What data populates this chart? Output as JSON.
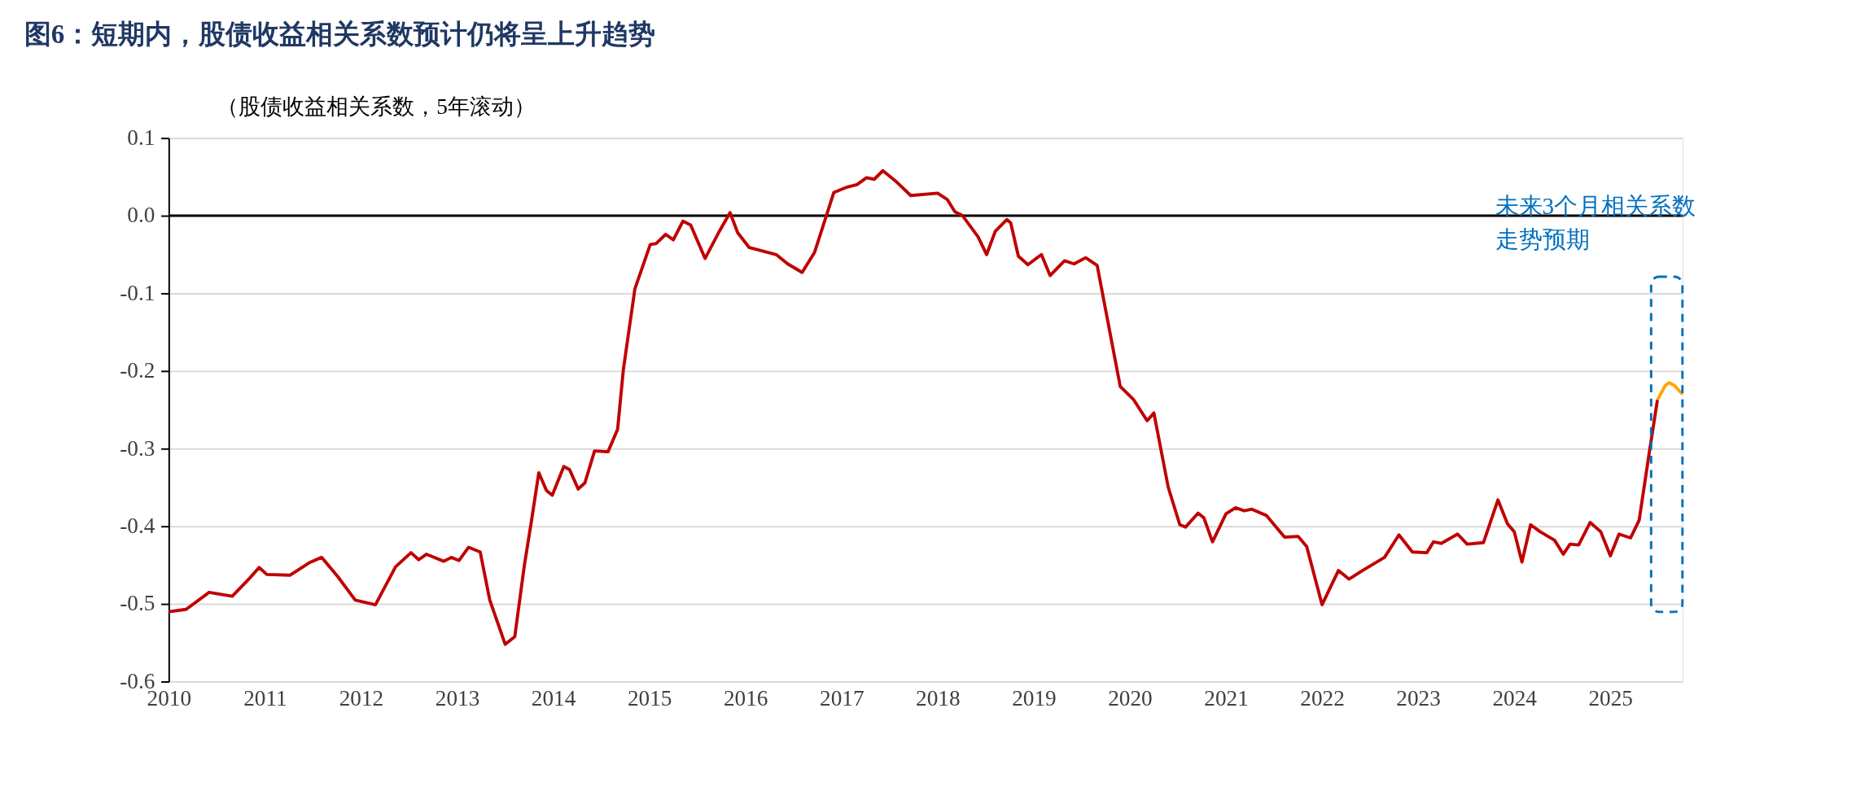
{
  "chart_data": {
    "type": "line",
    "title": "图6：短期内，股债收益相关系数预计仍将呈上升趋势",
    "ylabel": "（股债收益相关系数，5年滚动）",
    "xlim": [
      2010,
      2025.75
    ],
    "xticks": [
      2010,
      2011,
      2012,
      2013,
      2014,
      2015,
      2016,
      2017,
      2018,
      2019,
      2020,
      2021,
      2022,
      2023,
      2024,
      2025
    ],
    "ylim": [
      -0.6,
      0.1
    ],
    "yticks": [
      0.1,
      {
        "value": 0,
        "label": "0.0"
      },
      -0.1,
      -0.2,
      -0.3,
      -0.4,
      -0.5,
      -0.6
    ],
    "grid": "y",
    "line_style": "solid",
    "ref_lines": [
      {
        "axis": "y",
        "value": 0,
        "color": "#000000"
      }
    ],
    "annotations": [
      "未来3个月相关系数走势预期"
    ],
    "series": [
      {
        "color": "#c00000",
        "x": [
          2010.0,
          2010.18,
          2010.42,
          2010.66,
          2010.84,
          2010.94,
          2011.02,
          2011.26,
          2011.46,
          2011.59,
          2011.76,
          2011.94,
          2012.15,
          2012.36,
          2012.52,
          2012.6,
          2012.68,
          2012.86,
          2012.94,
          2013.02,
          2013.12,
          2013.24,
          2013.34,
          2013.5,
          2013.6,
          2013.7,
          2013.77,
          2013.85,
          2013.93,
          2013.99,
          2014.11,
          2014.17,
          2014.26,
          2014.33,
          2014.43,
          2014.57,
          2014.67,
          2014.73,
          2014.85,
          2015.01,
          2015.07,
          2015.17,
          2015.25,
          2015.35,
          2015.43,
          2015.58,
          2015.72,
          2015.84,
          2015.92,
          2016.04,
          2016.32,
          2016.44,
          2016.59,
          2016.72,
          2016.92,
          2017.06,
          2017.16,
          2017.26,
          2017.34,
          2017.43,
          2017.56,
          2017.72,
          2018.0,
          2018.1,
          2018.18,
          2018.26,
          2018.42,
          2018.51,
          2018.6,
          2018.72,
          2018.76,
          2018.84,
          2018.94,
          2019.08,
          2019.17,
          2019.32,
          2019.42,
          2019.54,
          2019.66,
          2019.9,
          2020.04,
          2020.18,
          2020.25,
          2020.4,
          2020.52,
          2020.58,
          2020.71,
          2020.77,
          2020.86,
          2021.0,
          2021.1,
          2021.19,
          2021.27,
          2021.42,
          2021.61,
          2021.75,
          2021.84,
          2022.0,
          2022.17,
          2022.28,
          2022.42,
          2022.65,
          2022.8,
          2022.94,
          2023.09,
          2023.16,
          2023.24,
          2023.41,
          2023.51,
          2023.68,
          2023.83,
          2023.93,
          2024.0,
          2024.08,
          2024.17,
          2024.27,
          2024.42,
          2024.51,
          2024.58,
          2024.67,
          2024.79,
          2024.9,
          2025.0,
          2025.09,
          2025.21,
          2025.3,
          2025.4,
          2025.49
        ],
        "values": [
          -0.51,
          -0.507,
          -0.485,
          -0.49,
          -0.467,
          -0.453,
          -0.462,
          -0.463,
          -0.447,
          -0.44,
          -0.465,
          -0.495,
          -0.501,
          -0.452,
          -0.434,
          -0.443,
          -0.436,
          -0.445,
          -0.44,
          -0.444,
          -0.427,
          -0.433,
          -0.495,
          -0.552,
          -0.542,
          -0.45,
          -0.396,
          -0.331,
          -0.354,
          -0.36,
          -0.323,
          -0.327,
          -0.352,
          -0.344,
          -0.303,
          -0.304,
          -0.275,
          -0.198,
          -0.094,
          -0.037,
          -0.036,
          -0.024,
          -0.031,
          -0.007,
          -0.012,
          -0.055,
          -0.022,
          0.004,
          -0.022,
          -0.041,
          -0.05,
          -0.062,
          -0.073,
          -0.047,
          0.03,
          0.037,
          0.04,
          0.049,
          0.047,
          0.058,
          0.045,
          0.026,
          0.029,
          0.021,
          0.005,
          0.0,
          -0.027,
          -0.05,
          -0.02,
          -0.005,
          -0.009,
          -0.052,
          -0.063,
          -0.05,
          -0.077,
          -0.058,
          -0.062,
          -0.054,
          -0.064,
          -0.22,
          -0.237,
          -0.264,
          -0.254,
          -0.35,
          -0.398,
          -0.401,
          -0.383,
          -0.389,
          -0.42,
          -0.384,
          -0.376,
          -0.38,
          -0.378,
          -0.386,
          -0.414,
          -0.413,
          -0.426,
          -0.501,
          -0.457,
          -0.468,
          -0.457,
          -0.44,
          -0.411,
          -0.433,
          -0.434,
          -0.42,
          -0.422,
          -0.41,
          -0.423,
          -0.421,
          -0.366,
          -0.397,
          -0.407,
          -0.446,
          -0.398,
          -0.407,
          -0.418,
          -0.436,
          -0.423,
          -0.424,
          -0.395,
          -0.407,
          -0.438,
          -0.41,
          -0.415,
          -0.392,
          -0.309,
          -0.237
        ]
      },
      {
        "color": "#ffa500",
        "x": [
          2025.49,
          2025.57,
          2025.61,
          2025.67,
          2025.75
        ],
        "values": [
          -0.237,
          -0.219,
          -0.215,
          -0.219,
          -0.23
        ]
      }
    ]
  }
}
